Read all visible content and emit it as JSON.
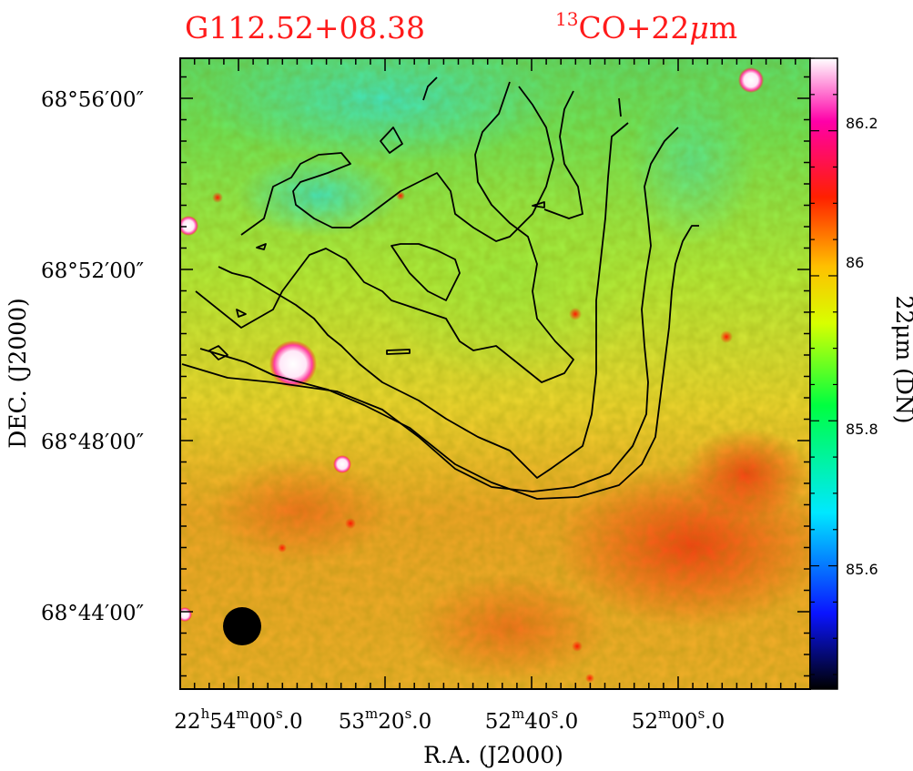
{
  "chart_data": {
    "type": "heatmap",
    "title_left": "G112.52+08.38",
    "title_right_sup": "13",
    "title_right_main": "CO+22",
    "title_right_mu": "μ",
    "title_right_tail": "m",
    "xlabel": "R.A.  (J2000)",
    "ylabel": "DEC.  (J2000)",
    "x_ticks": [
      {
        "h": "22",
        "hu": "h",
        "m": "54",
        "mu": "m",
        "s": "00",
        "su": "s",
        "f": ".0"
      },
      {
        "h": "",
        "hu": "",
        "m": "53",
        "mu": "m",
        "s": "20",
        "su": "s",
        "f": ".0"
      },
      {
        "h": "",
        "hu": "",
        "m": "52",
        "mu": "m",
        "s": "40",
        "su": "s",
        "f": ".0"
      },
      {
        "h": "",
        "hu": "",
        "m": "52",
        "mu": "m",
        "s": "00",
        "su": "s",
        "f": ".0"
      }
    ],
    "y_ticks": [
      "68°56′00″",
      "68°52′00″",
      "68°48′00″",
      "68°44′00″"
    ],
    "colorbar": {
      "label": "22μm (DN)",
      "range": [
        85.43,
        86.3
      ],
      "ticks": [
        "86.2",
        "86",
        "85.8",
        "85.6"
      ],
      "colors": [
        "#000000",
        "#1010ff",
        "#00ffff",
        "#00ff00",
        "#ffff00",
        "#ff0000",
        "#ff00ff",
        "#ffffff"
      ]
    },
    "beam": "filled circle, lower-left",
    "contour_levels": 5
  }
}
